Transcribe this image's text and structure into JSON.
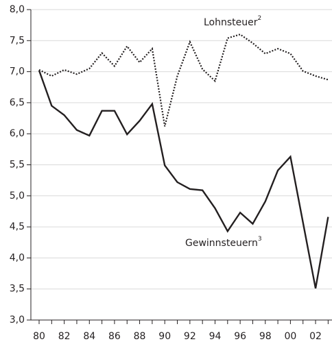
{
  "chart_data": {
    "type": "line",
    "categories": [
      "80",
      null,
      "82",
      null,
      "84",
      null,
      "86",
      null,
      "88",
      null,
      "90",
      null,
      "92",
      null,
      "94",
      null,
      "96",
      null,
      "98",
      null,
      "00",
      null,
      "02",
      null
    ],
    "series": [
      {
        "name": "Lohnsteuer",
        "note": "2",
        "color": "#231f20",
        "style": "dotted",
        "values": [
          7.03,
          6.93,
          7.03,
          6.96,
          7.05,
          7.3,
          7.09,
          7.41,
          7.15,
          7.37,
          6.12,
          6.93,
          7.48,
          7.04,
          6.85,
          7.54,
          7.6,
          7.46,
          7.29,
          7.37,
          7.29,
          7.01,
          6.93,
          6.87
        ]
      },
      {
        "name": "Gewinnsteuern",
        "note": "3",
        "color": "#231f20",
        "style": "solid",
        "values": [
          7.02,
          6.45,
          6.3,
          6.06,
          5.97,
          6.37,
          6.37,
          5.99,
          6.21,
          6.48,
          5.49,
          5.22,
          5.11,
          5.09,
          4.8,
          4.43,
          4.73,
          4.55,
          4.91,
          5.41,
          5.63,
          4.57,
          3.51,
          4.66
        ]
      }
    ],
    "ylim": [
      3.0,
      8.0
    ],
    "yticks": [
      {
        "value": 3.0,
        "label": "3,0"
      },
      {
        "value": 3.5,
        "label": "3,5"
      },
      {
        "value": 4.0,
        "label": "4,0"
      },
      {
        "value": 4.5,
        "label": "4,5"
      },
      {
        "value": 5.0,
        "label": "5,0"
      },
      {
        "value": 5.5,
        "label": "5,5"
      },
      {
        "value": 6.0,
        "label": "6,0"
      },
      {
        "value": 6.5,
        "label": "6,5"
      },
      {
        "value": 7.0,
        "label": "7,0"
      },
      {
        "value": 7.5,
        "label": "7,5"
      },
      {
        "value": 8.0,
        "label": "8,0"
      }
    ],
    "grid": true
  }
}
